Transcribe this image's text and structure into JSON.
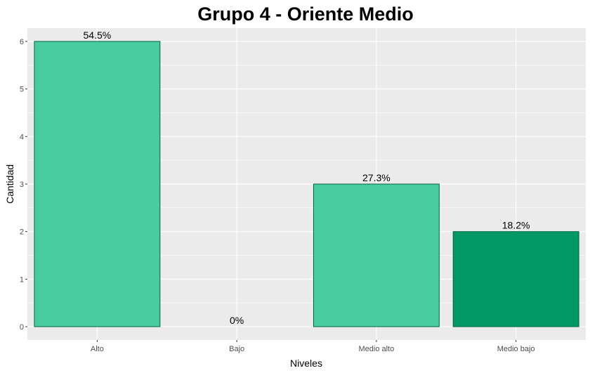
{
  "chart_data": {
    "type": "bar",
    "title": "Grupo 4 - Oriente Medio",
    "xlabel": "Niveles",
    "ylabel": "Cantidad",
    "categories": [
      "Alto",
      "Bajo",
      "Medio alto",
      "Medio bajo"
    ],
    "values": [
      6,
      0,
      3,
      2
    ],
    "labels": [
      "54.5%",
      "0%",
      "27.3%",
      "18.2%"
    ],
    "colors": [
      "#48CB9F",
      "#009966",
      "#48CB9F",
      "#009966"
    ],
    "ylim": [
      -0.28,
      6.28
    ],
    "yticks": [
      0,
      1,
      2,
      3,
      4,
      5,
      6
    ],
    "grid": true,
    "legend": "none",
    "panel_background": "#EBEBEB",
    "bar_outline": "#00663F"
  }
}
